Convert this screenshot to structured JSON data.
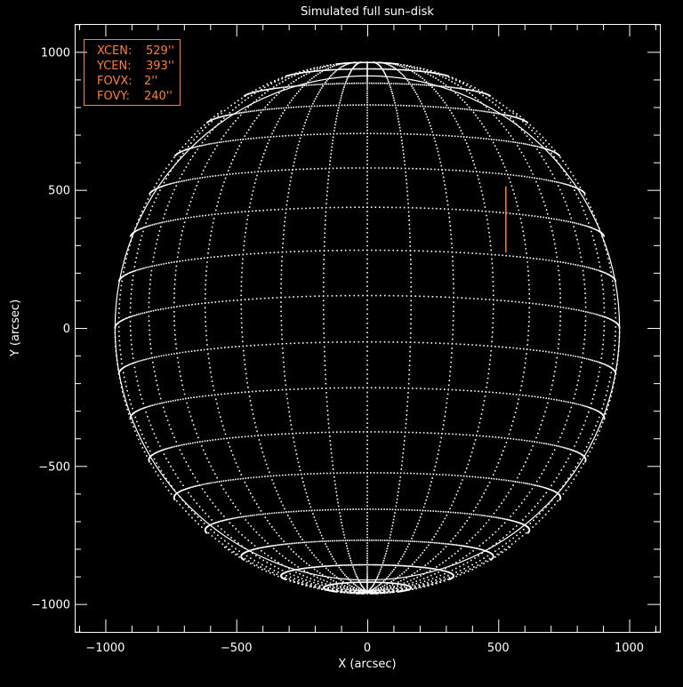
{
  "chart_data": {
    "type": "scatter",
    "title": "Simulated full sun–disk",
    "xlabel": "X (arcsec)",
    "ylabel": "Y (arcsec)",
    "xlim": [
      -1117,
      1117
    ],
    "ylim": [
      -1101,
      1101
    ],
    "xticks": [
      -1000,
      -500,
      0,
      500,
      1000
    ],
    "yticks": [
      -1000,
      -500,
      0,
      500,
      1000
    ],
    "xtick_labels": [
      "−1000",
      "−500",
      "0",
      "500",
      "1000"
    ],
    "ytick_labels": [
      "−1000",
      "−500",
      "0",
      "500",
      "1000"
    ],
    "minor_tick_step": 100,
    "solar_radius_arcsec": 963,
    "b0_angle_deg": -7,
    "grid_step_deg": 10,
    "fov": {
      "xcen": 529,
      "ycen": 393,
      "fovx": 2,
      "fovy": 240
    },
    "legend": {
      "placement": "top-left",
      "lines": [
        {
          "label": "XCEN:",
          "value": "529''"
        },
        {
          "label": "YCEN:",
          "value": "393''"
        },
        {
          "label": "FOVX:",
          "value": "2''"
        },
        {
          "label": "FOVY:",
          "value": "240''"
        }
      ]
    },
    "colors": {
      "background": "#000000",
      "axes": "#ffffff",
      "grid": "#ffffff",
      "fov": "#ff7f2a"
    }
  }
}
